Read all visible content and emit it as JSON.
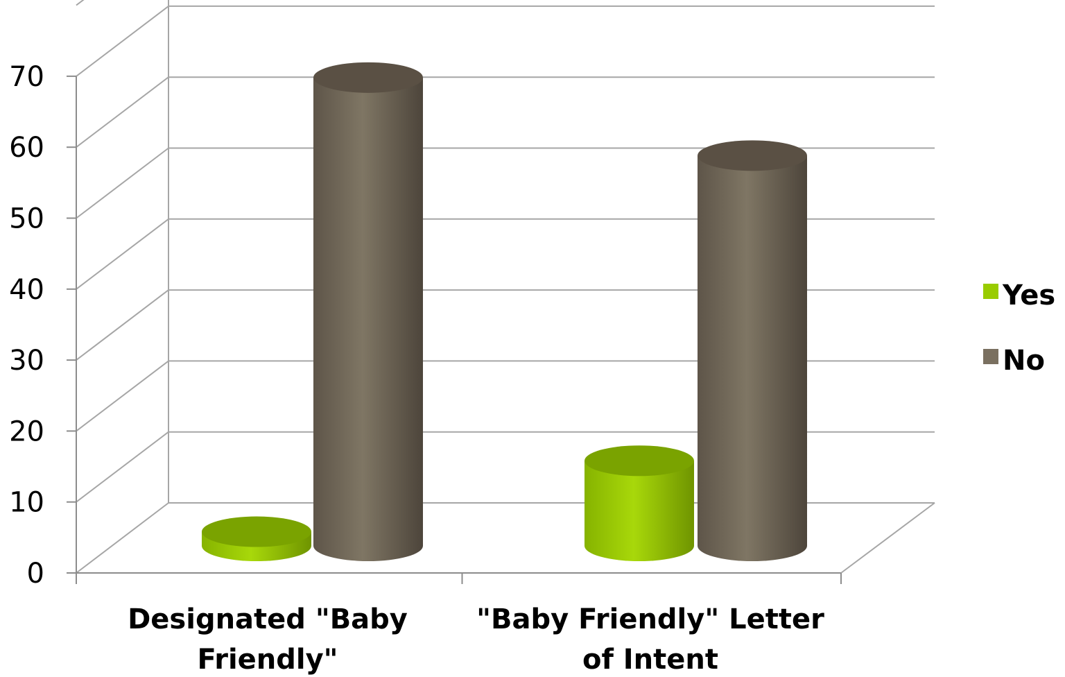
{
  "chart_data": {
    "type": "bar",
    "style": "3d-cylinder",
    "categories": [
      "Designated \"Baby Friendly\"",
      "\"Baby Friendly\" Letter of Intent"
    ],
    "category_lines": [
      [
        "Designated \"Baby",
        "Friendly\""
      ],
      [
        "\"Baby Friendly\" Letter",
        "of Intent"
      ]
    ],
    "series": [
      {
        "name": "Yes",
        "values": [
          2,
          12
        ],
        "color": "#99cc00",
        "top_color": "#7aa300"
      },
      {
        "name": "No",
        "values": [
          66,
          55
        ],
        "color": "#7a7060",
        "top_color": "#5a5044"
      }
    ],
    "yticks": [
      "0",
      "10",
      "20",
      "30",
      "40",
      "50",
      "60",
      "70"
    ],
    "ylim": [
      0,
      70
    ],
    "grid": true,
    "legend": "right",
    "title": "",
    "xlabel": "",
    "ylabel": ""
  }
}
